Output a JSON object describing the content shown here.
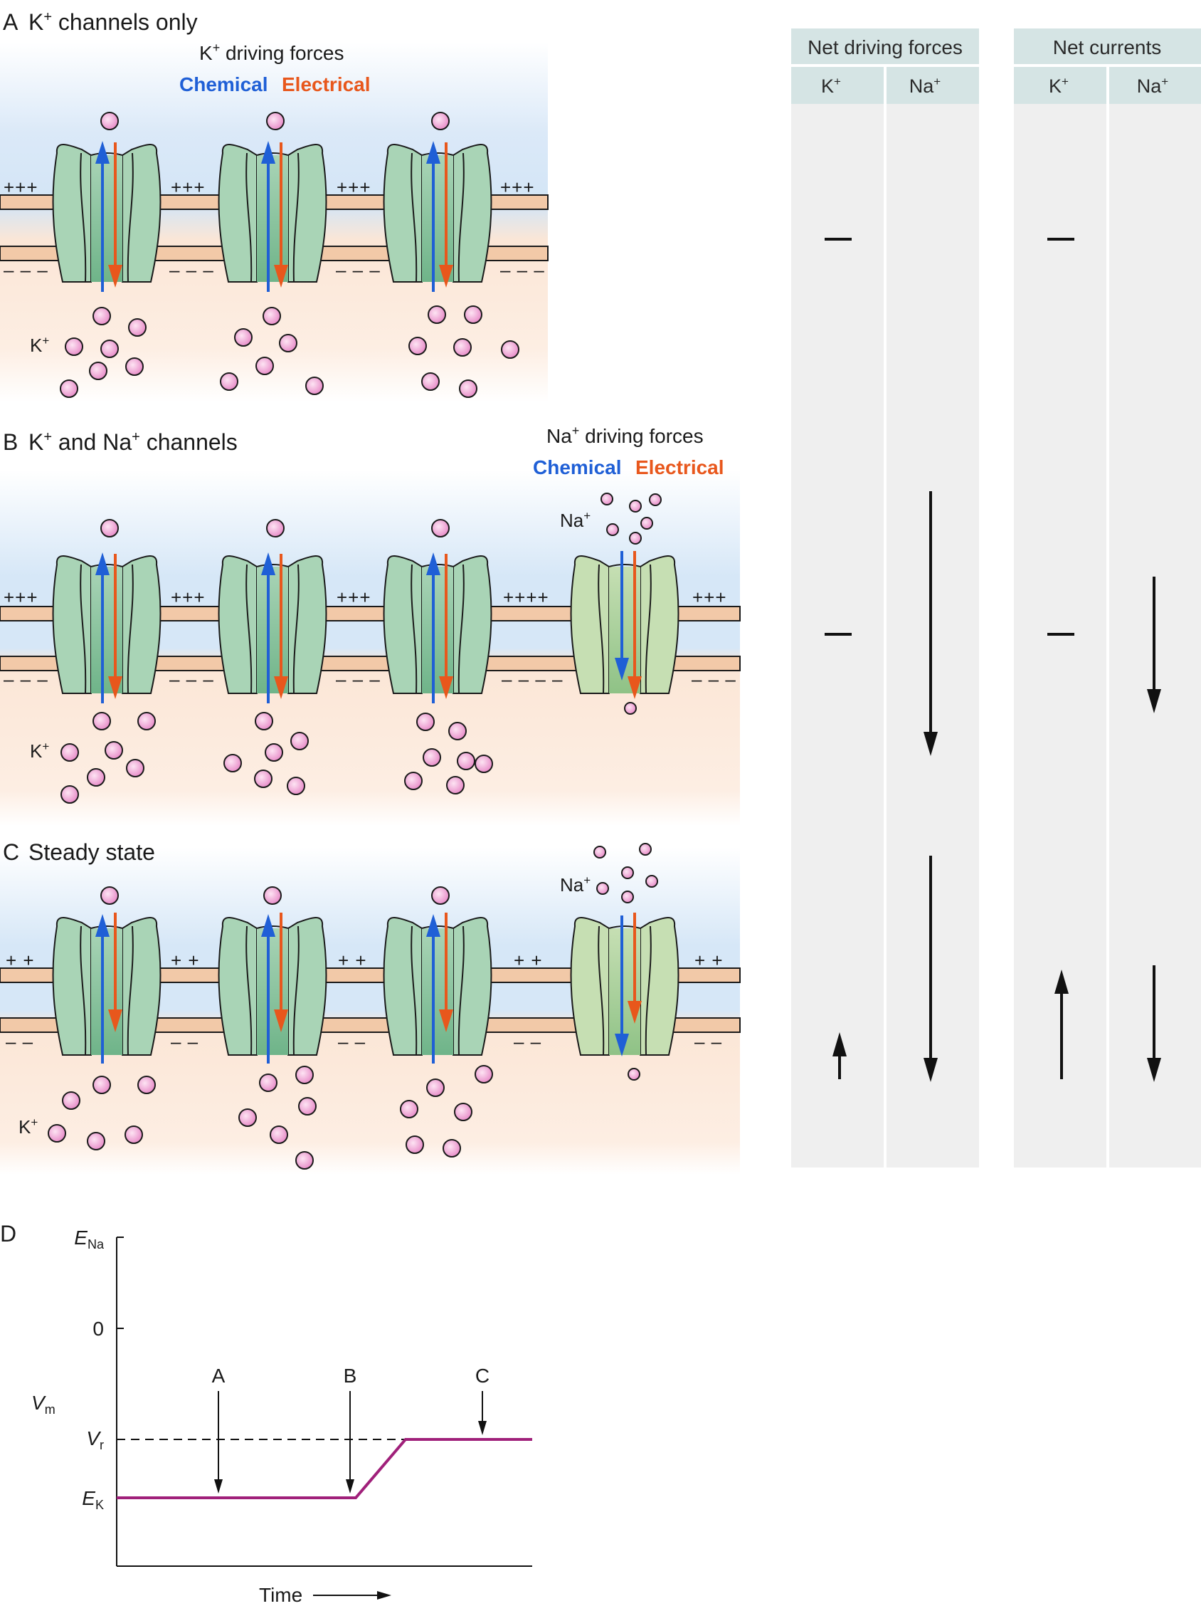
{
  "panels": {
    "a": {
      "letter": "A",
      "title_pre": "K",
      "title_sup": "+",
      "title_post": " channels only",
      "k_forces_title_pre": "K",
      "k_forces_title_sup": "+",
      "k_forces_title_post": " driving forces",
      "chemical": "Chemical",
      "electrical": "Electrical",
      "ion_label_main": "K",
      "ion_label_sup": "+",
      "charge_top": "+++",
      "charge_bottom": "– – –"
    },
    "b": {
      "letter": "B",
      "title_k": "K",
      "title_k_sup": "+",
      "title_mid": " and Na",
      "title_na_sup": "+",
      "title_post": " channels",
      "na_forces_title_pre": "Na",
      "na_forces_title_sup": "+",
      "na_forces_title_post": " driving forces",
      "chemical": "Chemical",
      "electrical": "Electrical",
      "k_label_main": "K",
      "k_label_sup": "+",
      "na_label_main": "Na",
      "na_label_sup": "+",
      "charge_top": "+++",
      "charge_top_wide": "++++",
      "charge_bottom": "– – –",
      "charge_bottom_wide": "– – – –"
    },
    "c": {
      "letter": "C",
      "title": "Steady state",
      "k_label_main": "K",
      "k_label_sup": "+",
      "na_label_main": "Na",
      "na_label_sup": "+",
      "charge_top": "+ +",
      "charge_bottom": "– –"
    }
  },
  "table": {
    "groups": [
      {
        "title": "Net driving forces",
        "cols": [
          {
            "main": "K",
            "sup": "+"
          },
          {
            "main": "Na",
            "sup": "+"
          }
        ]
      },
      {
        "title": "Net currents",
        "cols": [
          {
            "main": "K",
            "sup": "+"
          },
          {
            "main": "Na",
            "sup": "+"
          }
        ]
      }
    ],
    "rows": [
      {
        "row": "A",
        "cells": [
          {
            "symbol": "zero"
          },
          {
            "symbol": "none"
          },
          {
            "symbol": "zero"
          },
          {
            "symbol": "none"
          }
        ]
      },
      {
        "row": "B",
        "cells": [
          {
            "symbol": "zero"
          },
          {
            "symbol": "down",
            "magnitude": "large"
          },
          {
            "symbol": "zero"
          },
          {
            "symbol": "down",
            "magnitude": "medium"
          }
        ]
      },
      {
        "row": "C",
        "cells": [
          {
            "symbol": "up",
            "magnitude": "small"
          },
          {
            "symbol": "down",
            "magnitude": "large"
          },
          {
            "symbol": "up",
            "magnitude": "medium"
          },
          {
            "symbol": "down",
            "magnitude": "medium"
          }
        ]
      }
    ]
  },
  "graph_d": {
    "letter": "D",
    "y_label_main": "V",
    "y_label_sub": "m",
    "x_label": "Time",
    "y_ticks": [
      {
        "main": "E",
        "sub": "Na"
      },
      {
        "main": "0",
        "sub": ""
      },
      {
        "main": "V",
        "sub": "r"
      },
      {
        "main": "E",
        "sub": "K"
      }
    ],
    "markers": [
      "A",
      "B",
      "C"
    ],
    "trace_color": "#a0207a",
    "trace_levels": {
      "start": "E_K",
      "end": "V_r"
    }
  },
  "colors": {
    "chemical_arrow": "#1f5fd6",
    "electrical_arrow": "#e8571c",
    "ion_fill": "#f6b6e0",
    "channel_k": "#a9d4b6",
    "channel_na": "#c6dfb3",
    "membrane": "#f2c9a8",
    "extracellular": "#cfe3f6",
    "intracellular": "#fbe5d3",
    "table_bg": "#efefef",
    "table_header": "#d5e4e4"
  }
}
